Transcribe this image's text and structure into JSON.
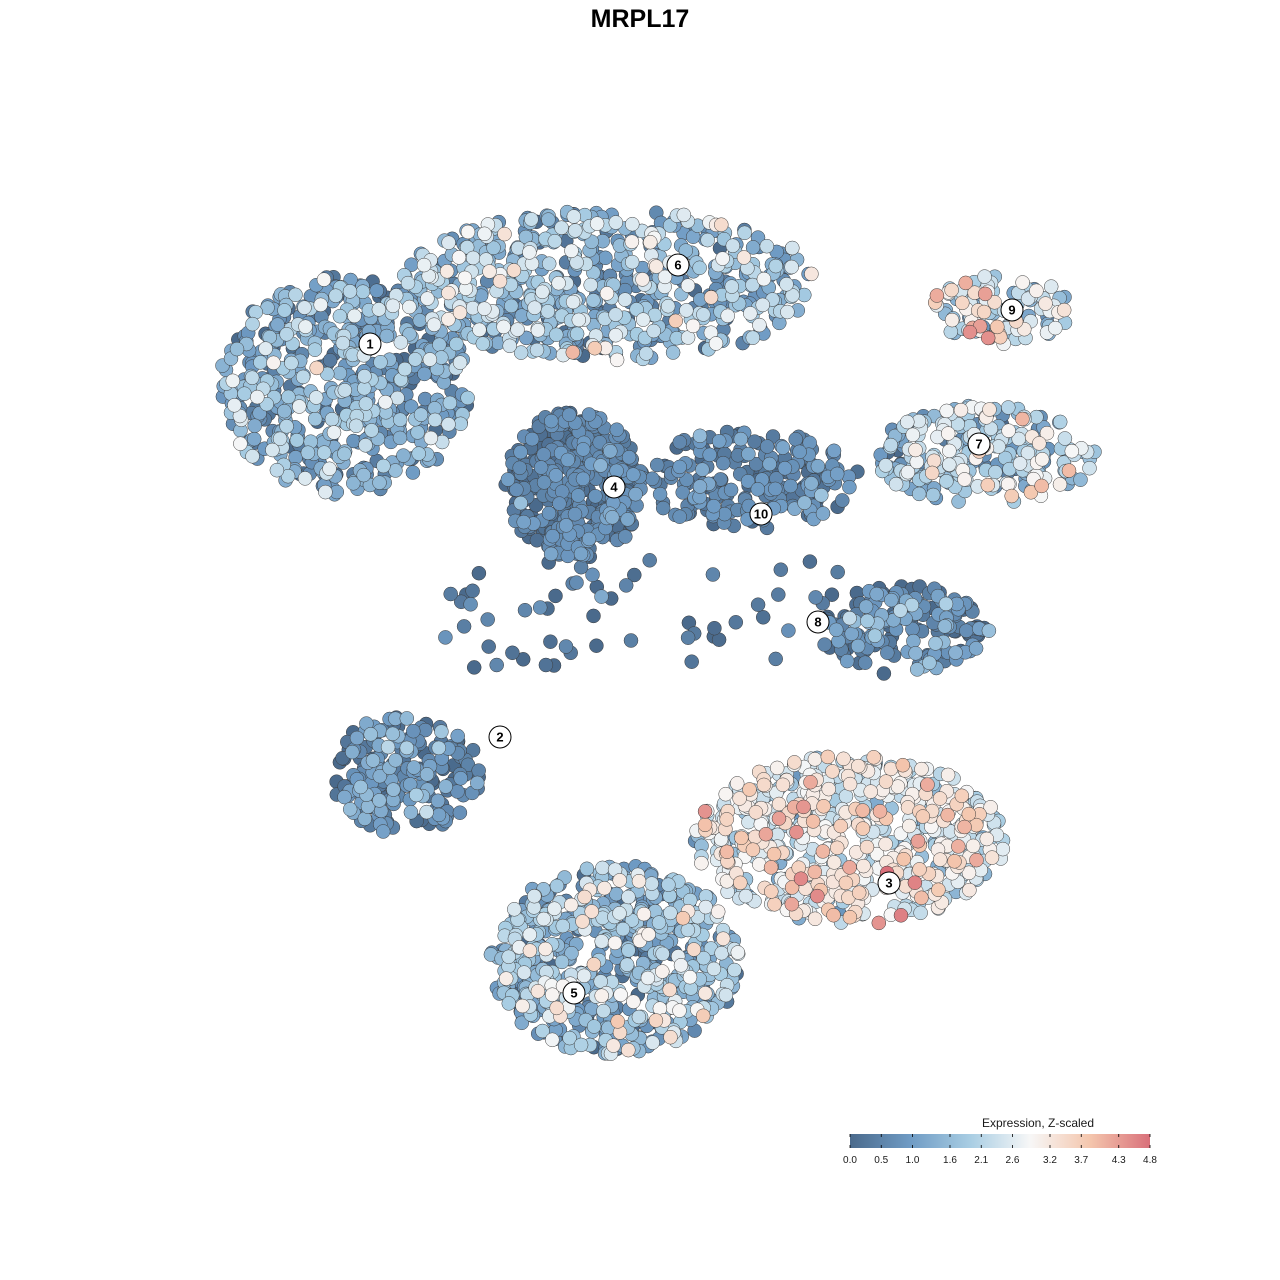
{
  "chart_data": {
    "type": "scatter",
    "title": "MRPL17",
    "xlabel": "",
    "ylabel": "",
    "grid": false,
    "legend": {
      "title": "Expression, Z-scaled",
      "placement": "bottom-right",
      "ticks": [
        "0.0",
        "0.5",
        "1.0",
        "1.6",
        "2.1",
        "2.6",
        "3.2",
        "3.7",
        "4.3",
        "4.8"
      ],
      "range": [
        0.0,
        4.8
      ],
      "colors": [
        "#4a6a8c",
        "#6f9bc4",
        "#a8cde3",
        "#f7f7f7",
        "#f4c6ad",
        "#d9707a"
      ]
    },
    "clusters": [
      {
        "label": "1",
        "mean_expression": 1.2
      },
      {
        "label": "2",
        "mean_expression": 0.6
      },
      {
        "label": "3",
        "mean_expression": 2.7
      },
      {
        "label": "4",
        "mean_expression": 0.4
      },
      {
        "label": "5",
        "mean_expression": 1.5
      },
      {
        "label": "6",
        "mean_expression": 1.6
      },
      {
        "label": "7",
        "mean_expression": 1.9
      },
      {
        "label": "8",
        "mean_expression": 0.6
      },
      {
        "label": "9",
        "mean_expression": 2.4
      },
      {
        "label": "10",
        "mean_expression": 0.5
      }
    ]
  }
}
